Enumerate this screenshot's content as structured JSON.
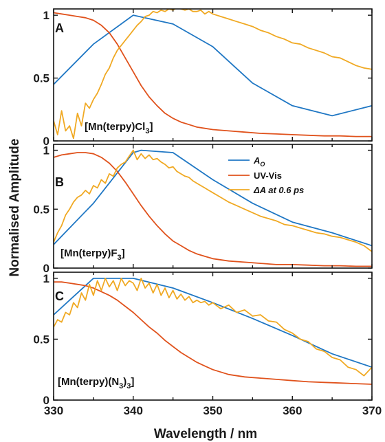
{
  "colors": {
    "ao": "#1f77c4",
    "uvvis": "#e0521c",
    "dA": "#f0a923",
    "axis": "#111111"
  },
  "chart_data": [
    {
      "type": "line",
      "panel": "A",
      "compound_parts": [
        "[Mn(terpy)Cl",
        "3",
        "]"
      ],
      "xlim": [
        330,
        370
      ],
      "ylim": [
        0,
        1.05
      ],
      "yticks": [
        0,
        0.5,
        1
      ],
      "ytick_labels": [
        "0",
        "0.5",
        "1"
      ],
      "series": [
        {
          "key": "ao",
          "x": [
            330,
            335,
            340,
            345,
            350,
            355,
            360,
            365,
            370
          ],
          "values": [
            0.45,
            0.77,
            1.0,
            0.93,
            0.75,
            0.46,
            0.28,
            0.2,
            0.28
          ]
        },
        {
          "key": "uvvis",
          "x": [
            330,
            331,
            332,
            333,
            334,
            335,
            336,
            337,
            338,
            339,
            340,
            341,
            342,
            343,
            344,
            345,
            346,
            347,
            348,
            349,
            350,
            352,
            354,
            356,
            358,
            360,
            362,
            364,
            366,
            368,
            370
          ],
          "values": [
            1.02,
            1.01,
            1.0,
            0.99,
            0.98,
            0.96,
            0.92,
            0.86,
            0.77,
            0.66,
            0.55,
            0.44,
            0.35,
            0.28,
            0.22,
            0.18,
            0.15,
            0.13,
            0.11,
            0.1,
            0.09,
            0.08,
            0.07,
            0.06,
            0.055,
            0.05,
            0.045,
            0.04,
            0.04,
            0.035,
            0.035
          ]
        },
        {
          "key": "dA",
          "x": [
            330,
            330.5,
            331,
            331.5,
            332,
            332.5,
            333,
            333.5,
            334,
            334.5,
            335,
            335.5,
            336,
            336.5,
            337,
            337.5,
            338,
            338.5,
            339,
            339.5,
            340,
            340.5,
            341,
            341.5,
            342,
            342.5,
            343,
            343.5,
            344,
            344.5,
            345,
            345.5,
            346,
            346.5,
            347,
            347.5,
            348,
            348.5,
            349,
            349.5,
            350,
            351,
            352,
            353,
            354,
            355,
            356,
            357,
            358,
            359,
            360,
            361,
            362,
            363,
            364,
            365,
            366,
            367,
            368,
            369,
            370
          ],
          "values": [
            0.16,
            0.05,
            0.24,
            0.08,
            0.12,
            0.02,
            0.22,
            0.12,
            0.3,
            0.26,
            0.33,
            0.38,
            0.45,
            0.53,
            0.58,
            0.66,
            0.72,
            0.76,
            0.8,
            0.84,
            0.88,
            0.92,
            0.95,
            0.99,
            1.0,
            1.03,
            1.02,
            1.04,
            1.03,
            1.05,
            1.04,
            1.06,
            1.05,
            1.04,
            1.05,
            1.03,
            1.03,
            1.04,
            1.01,
            1.03,
            1.01,
            0.99,
            0.97,
            0.95,
            0.93,
            0.91,
            0.88,
            0.86,
            0.83,
            0.81,
            0.78,
            0.77,
            0.74,
            0.72,
            0.7,
            0.67,
            0.66,
            0.63,
            0.6,
            0.58,
            0.57
          ]
        }
      ]
    },
    {
      "type": "line",
      "panel": "B",
      "compound_parts": [
        "[Mn(terpy)F",
        "3",
        "]"
      ],
      "xlim": [
        330,
        370
      ],
      "ylim": [
        0,
        1.05
      ],
      "yticks": [
        0,
        0.5,
        1
      ],
      "ytick_labels": [
        "0",
        "0.5",
        "1"
      ],
      "legend": {
        "position": "top-right",
        "labels": [
          "A",
          "O",
          "UV-Vis",
          "ΔA at 0.6 ps"
        ]
      },
      "series": [
        {
          "key": "ao",
          "x": [
            330,
            335,
            340,
            341,
            345,
            350,
            355,
            360,
            365,
            370
          ],
          "values": [
            0.2,
            0.55,
            0.98,
            1.0,
            0.98,
            0.75,
            0.55,
            0.39,
            0.3,
            0.19
          ]
        },
        {
          "key": "uvvis",
          "x": [
            330,
            331,
            332,
            333,
            334,
            335,
            336,
            337,
            338,
            339,
            340,
            341,
            342,
            343,
            344,
            345,
            346,
            347,
            348,
            349,
            350,
            352,
            354,
            356,
            358,
            360,
            362,
            364,
            366,
            368,
            370
          ],
          "values": [
            0.94,
            0.96,
            0.97,
            0.98,
            0.98,
            0.97,
            0.94,
            0.89,
            0.82,
            0.73,
            0.63,
            0.53,
            0.44,
            0.36,
            0.29,
            0.23,
            0.19,
            0.15,
            0.12,
            0.1,
            0.08,
            0.06,
            0.05,
            0.04,
            0.03,
            0.03,
            0.025,
            0.02,
            0.02,
            0.015,
            0.015
          ]
        },
        {
          "key": "dA",
          "x": [
            330,
            330.5,
            331,
            331.5,
            332,
            332.5,
            333,
            333.5,
            334,
            334.5,
            335,
            335.5,
            336,
            336.5,
            337,
            337.5,
            338,
            338.5,
            339,
            339.5,
            340,
            340.5,
            341,
            341.5,
            342,
            342.5,
            343,
            343.5,
            344,
            344.5,
            345,
            345.5,
            346,
            346.5,
            347,
            347.5,
            348,
            348.5,
            349,
            349.5,
            350,
            351,
            352,
            353,
            354,
            355,
            356,
            357,
            358,
            359,
            360,
            361,
            362,
            363,
            364,
            365,
            366,
            367,
            368,
            369,
            370
          ],
          "values": [
            0.22,
            0.3,
            0.36,
            0.45,
            0.5,
            0.56,
            0.6,
            0.62,
            0.66,
            0.63,
            0.7,
            0.68,
            0.75,
            0.72,
            0.8,
            0.78,
            0.85,
            0.88,
            0.9,
            0.95,
            1.0,
            0.92,
            0.97,
            0.93,
            0.96,
            0.92,
            0.93,
            0.9,
            0.88,
            0.85,
            0.86,
            0.82,
            0.8,
            0.78,
            0.77,
            0.74,
            0.72,
            0.7,
            0.68,
            0.66,
            0.64,
            0.6,
            0.56,
            0.53,
            0.5,
            0.47,
            0.44,
            0.42,
            0.4,
            0.37,
            0.36,
            0.34,
            0.32,
            0.3,
            0.29,
            0.27,
            0.26,
            0.24,
            0.22,
            0.19,
            0.14
          ]
        }
      ]
    },
    {
      "type": "line",
      "panel": "C",
      "compound_parts": [
        "[Mn(terpy)(N",
        "3",
        ")",
        "3",
        "]"
      ],
      "xlim": [
        330,
        370
      ],
      "ylim": [
        0,
        1.05
      ],
      "yticks": [
        0,
        0.5,
        1
      ],
      "ytick_labels": [
        "0",
        "0.5",
        "1"
      ],
      "xticks": [
        330,
        340,
        350,
        360,
        370
      ],
      "xtick_labels": [
        "330",
        "340",
        "350",
        "360",
        "370"
      ],
      "series": [
        {
          "key": "ao",
          "x": [
            330,
            335,
            340,
            345,
            350,
            355,
            360,
            365,
            370
          ],
          "values": [
            0.7,
            1.0,
            1.0,
            0.92,
            0.8,
            0.67,
            0.53,
            0.38,
            0.27
          ]
        },
        {
          "key": "uvvis",
          "x": [
            330,
            331,
            332,
            333,
            334,
            335,
            336,
            337,
            338,
            339,
            340,
            341,
            342,
            343,
            344,
            345,
            346,
            347,
            348,
            349,
            350,
            352,
            354,
            356,
            358,
            360,
            362,
            364,
            366,
            368,
            370
          ],
          "values": [
            0.97,
            0.97,
            0.96,
            0.95,
            0.94,
            0.92,
            0.89,
            0.86,
            0.82,
            0.77,
            0.72,
            0.66,
            0.6,
            0.55,
            0.49,
            0.44,
            0.39,
            0.35,
            0.31,
            0.28,
            0.25,
            0.21,
            0.19,
            0.18,
            0.17,
            0.16,
            0.15,
            0.145,
            0.14,
            0.135,
            0.13
          ]
        },
        {
          "key": "dA",
          "x": [
            330,
            330.5,
            331,
            331.5,
            332,
            332.5,
            333,
            333.5,
            334,
            334.5,
            335,
            335.5,
            336,
            336.5,
            337,
            337.5,
            338,
            338.5,
            339,
            339.5,
            340,
            340.5,
            341,
            341.5,
            342,
            342.5,
            343,
            343.5,
            344,
            344.5,
            345,
            345.5,
            346,
            346.5,
            347,
            347.5,
            348,
            348.5,
            349,
            349.5,
            350,
            351,
            352,
            353,
            354,
            355,
            356,
            357,
            358,
            359,
            360,
            361,
            362,
            363,
            364,
            365,
            366,
            367,
            368,
            369,
            370
          ],
          "values": [
            0.6,
            0.66,
            0.64,
            0.72,
            0.7,
            0.8,
            0.76,
            0.88,
            0.82,
            0.95,
            0.86,
            0.98,
            0.9,
            1.0,
            0.93,
            0.98,
            0.9,
            1.0,
            0.94,
            0.98,
            0.96,
            0.9,
            1.0,
            0.92,
            0.96,
            0.88,
            0.95,
            0.86,
            0.92,
            0.84,
            0.9,
            0.83,
            0.87,
            0.82,
            0.85,
            0.8,
            0.82,
            0.8,
            0.81,
            0.78,
            0.8,
            0.75,
            0.78,
            0.72,
            0.74,
            0.69,
            0.7,
            0.65,
            0.64,
            0.58,
            0.55,
            0.5,
            0.48,
            0.42,
            0.4,
            0.35,
            0.33,
            0.27,
            0.25,
            0.2,
            0.27
          ]
        }
      ]
    }
  ],
  "axes": {
    "ylabel": "Normalised Amplitude",
    "xlabel": "Wavelength / nm"
  }
}
